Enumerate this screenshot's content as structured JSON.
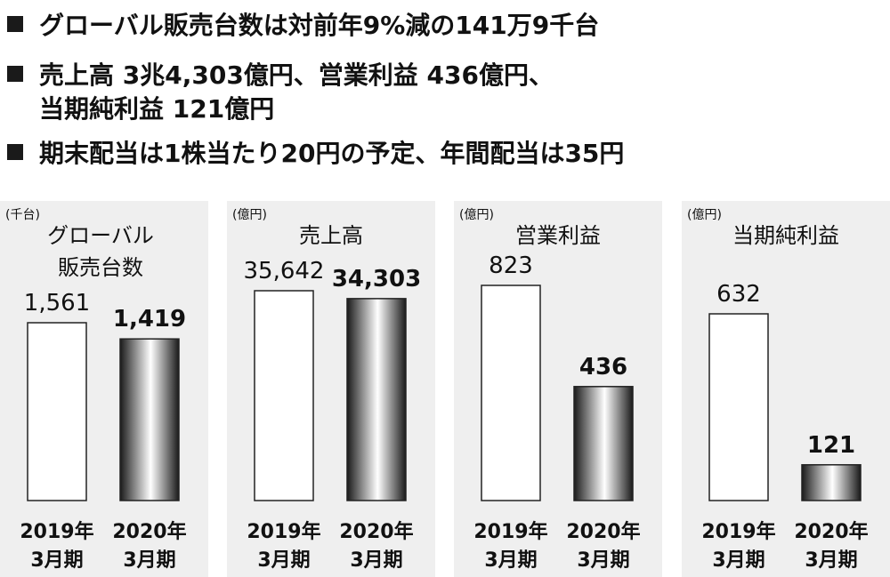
{
  "bullets": [
    {
      "lines": [
        "グローバル販売台数は対前年9%減の141万9千台"
      ]
    },
    {
      "lines": [
        "売上高 3兆4,303億円、営業利益 436億円、",
        "当期純利益 121億円"
      ]
    },
    {
      "lines": [
        "期末配当は1株当たり20円の予定、年間配当は35円"
      ]
    }
  ],
  "colors": {
    "panel_bg": "#efefef",
    "bar_2019_fill": "#ffffff",
    "bar_border": "#222222",
    "gradient_dark": "#1a1a1a",
    "gradient_light": "#ffffff"
  },
  "chart_data": [
    {
      "type": "bar",
      "unit": "(千台)",
      "title_lines": [
        "グローバル",
        "販売台数"
      ],
      "categories": [
        [
          "2019年",
          "3月期"
        ],
        [
          "2020年",
          "3月期"
        ]
      ],
      "values": [
        1561,
        1419
      ],
      "value_labels": [
        "1,561",
        "1,419"
      ]
    },
    {
      "type": "bar",
      "unit": "(億円)",
      "title_lines": [
        "売上高"
      ],
      "categories": [
        [
          "2019年",
          "3月期"
        ],
        [
          "2020年",
          "3月期"
        ]
      ],
      "values": [
        35642,
        34303
      ],
      "value_labels": [
        "35,642",
        "34,303"
      ]
    },
    {
      "type": "bar",
      "unit": "(億円)",
      "title_lines": [
        "営業利益"
      ],
      "categories": [
        [
          "2019年",
          "3月期"
        ],
        [
          "2020年",
          "3月期"
        ]
      ],
      "values": [
        823,
        436
      ],
      "value_labels": [
        "823",
        "436"
      ]
    },
    {
      "type": "bar",
      "unit": "(億円)",
      "title_lines": [
        "当期純利益"
      ],
      "categories": [
        [
          "2019年",
          "3月期"
        ],
        [
          "2020年",
          "3月期"
        ]
      ],
      "values": [
        632,
        121
      ],
      "value_labels": [
        "632",
        "121"
      ]
    }
  ]
}
